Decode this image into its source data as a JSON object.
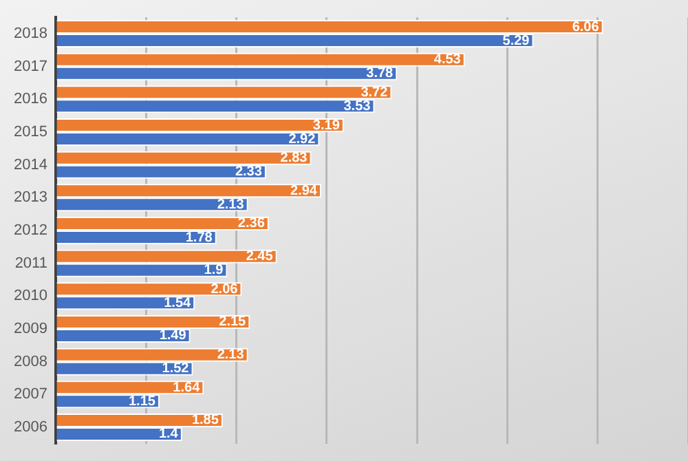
{
  "chart_data": {
    "type": "bar",
    "orientation": "horizontal",
    "categories": [
      "2018",
      "2017",
      "2016",
      "2015",
      "2014",
      "2013",
      "2012",
      "2011",
      "2010",
      "2009",
      "2008",
      "2007",
      "2006"
    ],
    "series": [
      {
        "color": "#ed7d31",
        "values": [
          6.06,
          4.53,
          3.72,
          3.19,
          2.83,
          2.94,
          2.36,
          2.45,
          2.06,
          2.15,
          2.13,
          1.64,
          1.85
        ]
      },
      {
        "color": "#4472c4",
        "values": [
          5.29,
          3.78,
          3.53,
          2.92,
          2.33,
          2.13,
          1.78,
          1.9,
          1.54,
          1.49,
          1.52,
          1.15,
          1.4
        ]
      }
    ],
    "grid": "x",
    "tick_labels": "y",
    "data_labels": true,
    "legend": false
  }
}
